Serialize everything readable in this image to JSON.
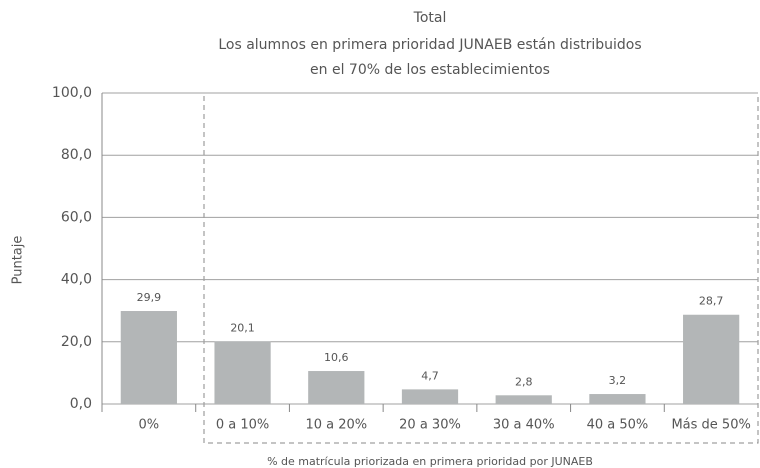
{
  "chart_data": {
    "type": "bar",
    "title": "Total",
    "subtitle": [
      "Los alumnos en primera prioridad JUNAEB están distribuidos",
      "en el 70% de los establecimientos"
    ],
    "y_label": "Puntaje",
    "x_label": "% de matrícula priorizada en primera prioridad por JUNAEB",
    "categories": [
      "0%",
      "0 a 10%",
      "10 a 20%",
      "20 a 30%",
      "30 a 40%",
      "40 a 50%",
      "Más de 50%"
    ],
    "values": [
      29.9,
      20.1,
      10.6,
      4.7,
      2.8,
      3.2,
      28.7
    ],
    "value_labels": [
      "29,9",
      "20,1",
      "10,6",
      "4,7",
      "2,8",
      "3,2",
      "28,7"
    ],
    "color": "#b3b6b7",
    "ylim": [
      0,
      100
    ],
    "yticks": [
      {
        "value": 0,
        "label": "0,0"
      },
      {
        "value": 20,
        "label": "20,0"
      },
      {
        "value": 40,
        "label": "40,0"
      },
      {
        "value": 60,
        "label": "60,0"
      },
      {
        "value": 80,
        "label": "80,0"
      },
      {
        "value": 100,
        "label": "100,0"
      }
    ],
    "grid": true
  }
}
